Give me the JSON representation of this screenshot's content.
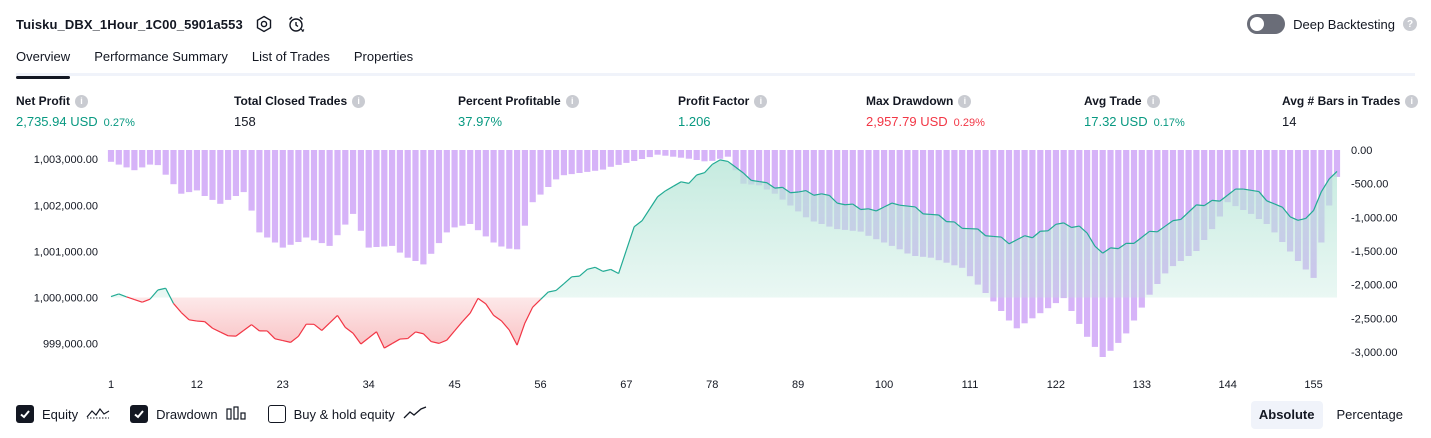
{
  "header": {
    "strategy_name": "Tuisku_DBX_1Hour_1C00_5901a553",
    "settings_icon": "gear-icon",
    "alarm_icon": "alarm-clock-icon"
  },
  "deep_backtesting": {
    "label": "Deep Backtesting",
    "enabled": false,
    "help": "?"
  },
  "tabs": [
    {
      "label": "Overview",
      "active": true
    },
    {
      "label": "Performance Summary",
      "active": false
    },
    {
      "label": "List of Trades",
      "active": false
    },
    {
      "label": "Properties",
      "active": false
    }
  ],
  "metrics": [
    {
      "label": "Net Profit",
      "value": "2,735.94 USD",
      "pct": "0.27%",
      "color": "#089981"
    },
    {
      "label": "Total Closed Trades",
      "value": "158",
      "pct": "",
      "color": "#131722"
    },
    {
      "label": "Percent Profitable",
      "value": "37.97%",
      "pct": "",
      "color": "#089981"
    },
    {
      "label": "Profit Factor",
      "value": "1.206",
      "pct": "",
      "color": "#089981"
    },
    {
      "label": "Max Drawdown",
      "value": "2,957.79 USD",
      "pct": "0.29%",
      "color": "#f23645"
    },
    {
      "label": "Avg Trade",
      "value": "17.32 USD",
      "pct": "0.17%",
      "color": "#089981"
    },
    {
      "label": "Avg # Bars in Trades",
      "value": "14",
      "pct": "",
      "color": "#131722"
    }
  ],
  "info_glyph": "i",
  "chart_data": {
    "type": "area",
    "equity": {
      "baseline": 1000000,
      "y_range": [
        998600,
        1003200
      ],
      "y_ticks": [
        "1,003,000.00",
        "1,002,000.00",
        "1,001,000.00",
        "1,000,000.00",
        "999,000.00"
      ],
      "y_tick_values": [
        1003000,
        1002000,
        1001000,
        1000000,
        999000
      ],
      "keypoints": [
        [
          1,
          1000020
        ],
        [
          3,
          1000060
        ],
        [
          5,
          999850
        ],
        [
          7,
          1000150
        ],
        [
          8,
          1000140
        ],
        [
          10,
          999650
        ],
        [
          12,
          999500
        ],
        [
          14,
          999380
        ],
        [
          16,
          999120
        ],
        [
          19,
          999350
        ],
        [
          21,
          999250
        ],
        [
          24,
          998990
        ],
        [
          26,
          999420
        ],
        [
          28,
          999320
        ],
        [
          30,
          999550
        ],
        [
          32,
          999200
        ],
        [
          33,
          999050
        ],
        [
          35,
          999220
        ],
        [
          36,
          998950
        ],
        [
          38,
          999050
        ],
        [
          40,
          999240
        ],
        [
          43,
          998980
        ],
        [
          46,
          999440
        ],
        [
          48,
          999980
        ],
        [
          51,
          999480
        ],
        [
          53,
          998990
        ],
        [
          55,
          999850
        ],
        [
          58,
          1000200
        ],
        [
          62,
          1000600
        ],
        [
          66,
          1000580
        ],
        [
          68,
          1001500
        ],
        [
          72,
          1002350
        ],
        [
          75,
          1002500
        ],
        [
          78,
          1002900
        ],
        [
          80,
          1003000
        ],
        [
          82,
          1002650
        ],
        [
          85,
          1002430
        ],
        [
          89,
          1002300
        ],
        [
          92,
          1002250
        ],
        [
          95,
          1002000
        ],
        [
          98,
          1001900
        ],
        [
          102,
          1002050
        ],
        [
          105,
          1001850
        ],
        [
          108,
          1001670
        ],
        [
          112,
          1001450
        ],
        [
          116,
          1001200
        ],
        [
          119,
          1001320
        ],
        [
          122,
          1001600
        ],
        [
          125,
          1001550
        ],
        [
          128,
          1000950
        ],
        [
          131,
          1001150
        ],
        [
          134,
          1001400
        ],
        [
          137,
          1001620
        ],
        [
          140,
          1001950
        ],
        [
          143,
          1002150
        ],
        [
          146,
          1002400
        ],
        [
          148,
          1002250
        ],
        [
          151,
          1001900
        ],
        [
          153,
          1001650
        ],
        [
          155,
          1001900
        ],
        [
          157,
          1002620
        ],
        [
          158,
          1002736
        ]
      ]
    },
    "drawdown": {
      "y_ticks": [
        "0.00",
        "-500.00",
        "-1,000.00",
        "-1,500.00",
        "-2,000.00",
        "-2,500.00",
        "-3,000.00"
      ],
      "y_tick_values": [
        0,
        -500,
        -1000,
        -1500,
        -2000,
        -2500,
        -3000
      ],
      "y_range": [
        -3150,
        0
      ],
      "keypoints": [
        [
          1,
          -50
        ],
        [
          4,
          -250
        ],
        [
          7,
          -200
        ],
        [
          10,
          -550
        ],
        [
          12,
          -450
        ],
        [
          15,
          -700
        ],
        [
          18,
          -600
        ],
        [
          20,
          -1200
        ],
        [
          23,
          -1350
        ],
        [
          26,
          -1150
        ],
        [
          29,
          -1350
        ],
        [
          32,
          -950
        ],
        [
          34,
          -1400
        ],
        [
          37,
          -1300
        ],
        [
          41,
          -1600
        ],
        [
          44,
          -1200
        ],
        [
          47,
          -1050
        ],
        [
          50,
          -1250
        ],
        [
          53,
          -1350
        ],
        [
          55,
          -700
        ],
        [
          59,
          -350
        ],
        [
          65,
          -100
        ],
        [
          70,
          -80
        ],
        [
          75,
          -30
        ],
        [
          80,
          0
        ],
        [
          82,
          -450
        ],
        [
          86,
          -600
        ],
        [
          90,
          -850
        ],
        [
          94,
          -1100
        ],
        [
          98,
          -1250
        ],
        [
          102,
          -1350
        ],
        [
          106,
          -1500
        ],
        [
          110,
          -1750
        ],
        [
          114,
          -2150
        ],
        [
          117,
          -2500
        ],
        [
          120,
          -2350
        ],
        [
          123,
          -2200
        ],
        [
          126,
          -2700
        ],
        [
          128,
          -2950
        ],
        [
          131,
          -2600
        ],
        [
          134,
          -2100
        ],
        [
          137,
          -1700
        ],
        [
          140,
          -1400
        ],
        [
          144,
          -650
        ],
        [
          147,
          -900
        ],
        [
          150,
          -1200
        ],
        [
          153,
          -1550
        ],
        [
          155,
          -1750
        ],
        [
          157,
          -700
        ],
        [
          158,
          -300
        ]
      ]
    },
    "x_ticks": [
      1,
      12,
      23,
      34,
      45,
      56,
      67,
      78,
      89,
      100,
      111,
      122,
      133,
      144,
      155
    ],
    "x_range": [
      1,
      158
    ],
    "colors": {
      "profit_line": "#22ab94",
      "profit_fill": "#b8e6d8",
      "loss_line": "#f23645",
      "loss_fill": "#f8b3b6",
      "drawdown_bar": "#d6b3f8",
      "bh_line": "#131722"
    }
  },
  "legend": [
    {
      "label": "Equity",
      "checked": true,
      "icon": "equity-line-icon"
    },
    {
      "label": "Drawdown",
      "checked": true,
      "icon": "drawdown-bars-icon"
    },
    {
      "label": "Buy & hold equity",
      "checked": false,
      "icon": "buy-hold-line-icon"
    }
  ],
  "mode": {
    "absolute": "Absolute",
    "percentage": "Percentage",
    "selected": "Absolute"
  }
}
